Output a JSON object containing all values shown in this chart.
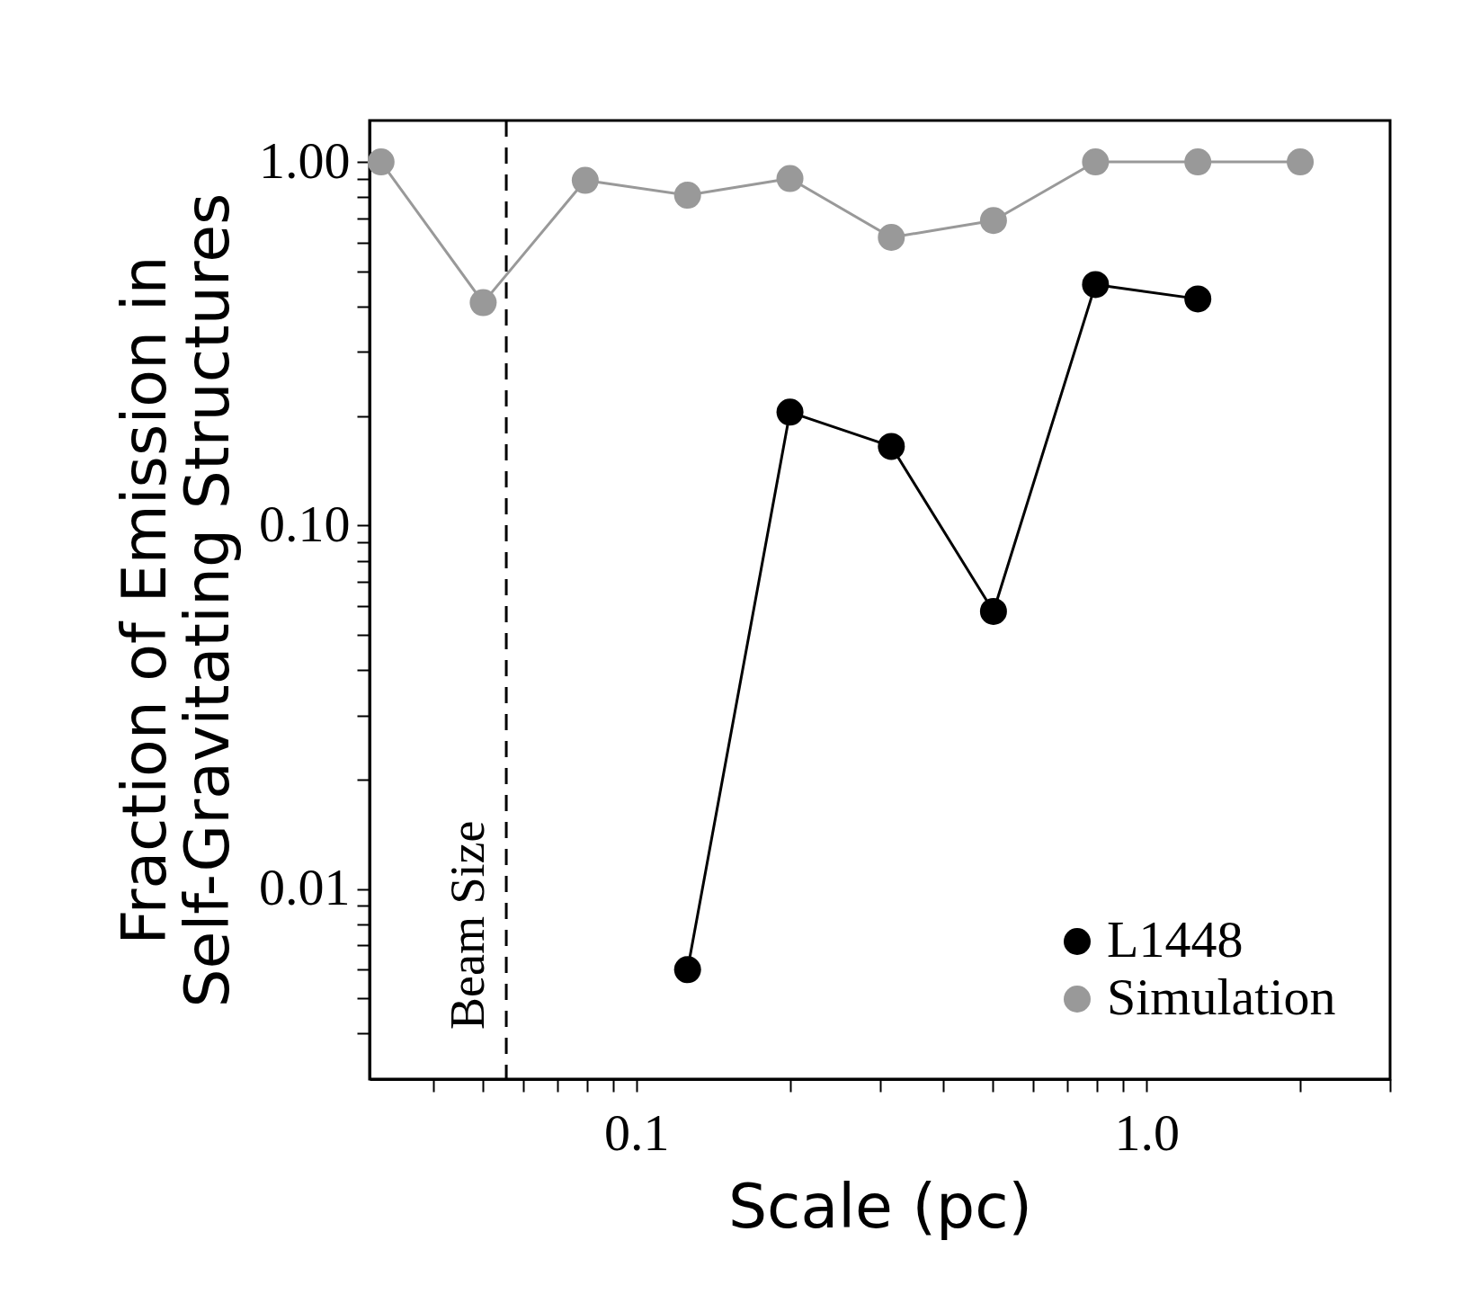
{
  "chart_data": {
    "type": "line",
    "xlabel": "Scale (pc)",
    "ylabel": "Fraction of Emission in\nSelf-Gravitating Structures",
    "log": "xy",
    "xlim": [
      0.03,
      3.0
    ],
    "ylim": [
      0.003,
      1.3
    ],
    "xticks": [
      {
        "value": 0.04,
        "label": null
      },
      {
        "value": 0.05,
        "label": null
      },
      {
        "value": 0.06,
        "label": null
      },
      {
        "value": 0.07,
        "label": null
      },
      {
        "value": 0.08,
        "label": null
      },
      {
        "value": 0.09,
        "label": null
      },
      0.1,
      {
        "value": 0.2,
        "label": null
      },
      {
        "value": 0.3,
        "label": null
      },
      {
        "value": 0.4,
        "label": null
      },
      {
        "value": 0.5,
        "label": null
      },
      {
        "value": 0.6,
        "label": null
      },
      {
        "value": 0.7,
        "label": null
      },
      {
        "value": 0.8,
        "label": null
      },
      {
        "value": 0.9,
        "label": null
      },
      {
        "value": 1.0,
        "label": "1.0"
      },
      {
        "value": 2.0,
        "label": null
      },
      {
        "value": 3.0,
        "label": null
      }
    ],
    "yticks": [
      {
        "value": 0.004,
        "label": null
      },
      {
        "value": 0.005,
        "label": null
      },
      {
        "value": 0.006,
        "label": null
      },
      {
        "value": 0.007,
        "label": null
      },
      {
        "value": 0.008,
        "label": null
      },
      {
        "value": 0.009,
        "label": null
      },
      0.01,
      {
        "value": 0.02,
        "label": null
      },
      {
        "value": 0.03,
        "label": null
      },
      {
        "value": 0.04,
        "label": null
      },
      {
        "value": 0.05,
        "label": null
      },
      {
        "value": 0.06,
        "label": null
      },
      {
        "value": 0.07,
        "label": null
      },
      {
        "value": 0.08,
        "label": null
      },
      {
        "value": 0.09,
        "label": null
      },
      {
        "value": 0.1,
        "label": "0.10"
      },
      {
        "value": 0.2,
        "label": null
      },
      {
        "value": 0.3,
        "label": null
      },
      {
        "value": 0.4,
        "label": null
      },
      {
        "value": 0.5,
        "label": null
      },
      {
        "value": 0.6,
        "label": null
      },
      {
        "value": 0.7,
        "label": null
      },
      {
        "value": 0.8,
        "label": null
      },
      {
        "value": 0.9,
        "label": null
      },
      {
        "value": 1.0,
        "label": "1.00"
      }
    ],
    "grid": false,
    "legend": "bottom right",
    "marker": "circle",
    "line_style": "solid",
    "series": [
      {
        "name": "L1448",
        "color": "#000000",
        "x": [
          0.126,
          0.2,
          0.316,
          0.501,
          0.794,
          1.26
        ],
        "values": [
          0.006,
          0.205,
          0.165,
          0.058,
          0.46,
          0.42
        ]
      },
      {
        "name": "Simulation",
        "color": "#999999",
        "x": [
          0.0316,
          0.0501,
          0.0794,
          0.126,
          0.2,
          0.316,
          0.501,
          0.794,
          1.26,
          2.0
        ],
        "values": [
          1.0,
          0.41,
          0.89,
          0.81,
          0.9,
          0.62,
          0.69,
          1.0,
          1.0,
          1.0
        ]
      }
    ],
    "ref_lines": [
      {
        "axis": "x",
        "value": 0.0556,
        "label": "Beam Size",
        "line_style": "dashed",
        "color": "#000000"
      }
    ]
  }
}
